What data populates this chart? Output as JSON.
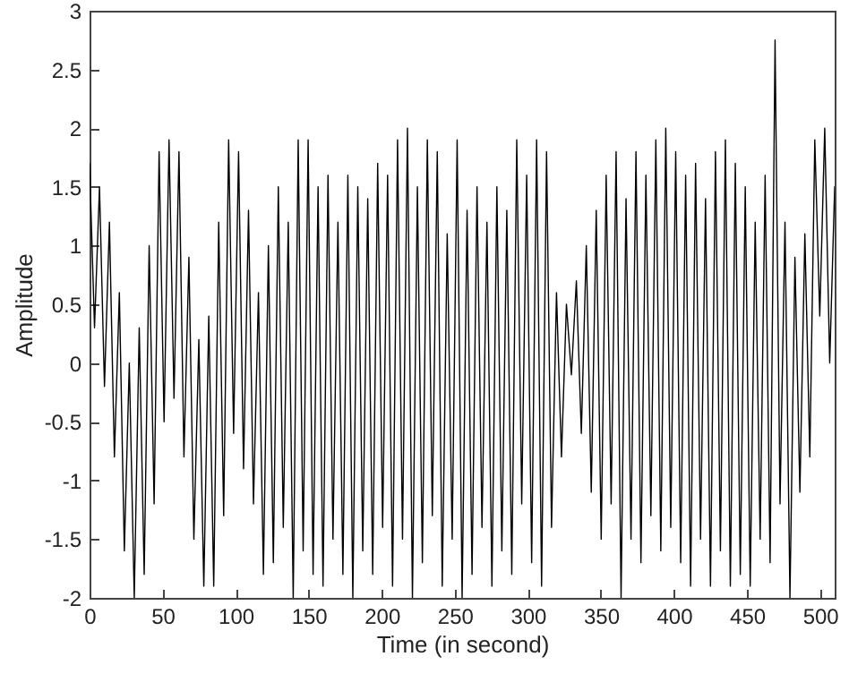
{
  "chart_data": {
    "type": "line",
    "xlabel": "Time (in second)",
    "ylabel": "Amplitude",
    "x": [
      0,
      3.4,
      6.8,
      10.2,
      13.6,
      17,
      20.4,
      23.8,
      27.2,
      30.6,
      34,
      37.4,
      40.8,
      44.2,
      47.6,
      51,
      54.4,
      57.8,
      61.2,
      64.6,
      68,
      71.4,
      74.8,
      78.2,
      81.6,
      85,
      88.4,
      91.8,
      95.2,
      98.6,
      102,
      105.4,
      108.8,
      112.2,
      115.6,
      119,
      122.4,
      125.8,
      129.2,
      132.6,
      136,
      139.4,
      142.8,
      146.2,
      149.6,
      153,
      156.4,
      159.8,
      163.2,
      166.6,
      170,
      173.4,
      176.8,
      180.2,
      183.6,
      187,
      190.4,
      193.8,
      197.2,
      200.6,
      204,
      207.4,
      210.8,
      214.2,
      217.6,
      221,
      224.4,
      227.8,
      231.2,
      234.6,
      238,
      241.4,
      244.8,
      248.2,
      251.6,
      255,
      258.4,
      261.8,
      265.2,
      268.6,
      272,
      275.4,
      278.8,
      282.2,
      285.6,
      289,
      292.4,
      295.8,
      299.2,
      302.6,
      306,
      309.4,
      312.8,
      316.2,
      319.6,
      323,
      326.4,
      329.8,
      333.2,
      336.6,
      340,
      343.4,
      346.8,
      350.2,
      353.6,
      357,
      360.4,
      363.8,
      367.2,
      370.6,
      374,
      377.4,
      380.8,
      384.2,
      387.6,
      391,
      394.4,
      397.8,
      401.2,
      404.6,
      408,
      411.4,
      414.8,
      418.2,
      421.6,
      425,
      428.4,
      431.8,
      435.2,
      438.6,
      442,
      445.4,
      448.8,
      452.2,
      455.6,
      459,
      462.4,
      465.8,
      469.2,
      472.6,
      476,
      479.4,
      482.8,
      486.2,
      489.6,
      493,
      496.4,
      499.8,
      503.2,
      506.6,
      510
    ],
    "series": [
      {
        "color": "#000000",
        "values": [
          1.7,
          0.3,
          1.5,
          -0.2,
          1.2,
          -0.8,
          0.6,
          -1.6,
          0.0,
          -2.0,
          0.3,
          -1.8,
          1.0,
          -1.2,
          1.8,
          -0.5,
          1.9,
          -0.3,
          1.8,
          -0.8,
          0.9,
          -1.5,
          0.2,
          -1.9,
          0.4,
          -1.9,
          1.2,
          -1.3,
          1.9,
          -0.6,
          1.8,
          -0.9,
          1.3,
          -1.2,
          0.6,
          -1.8,
          1.0,
          -1.7,
          1.5,
          -1.4,
          1.2,
          -2.0,
          1.9,
          -1.6,
          1.9,
          -1.8,
          1.5,
          -1.9,
          1.6,
          -1.5,
          1.2,
          -1.8,
          1.6,
          -2.0,
          1.5,
          -1.6,
          1.4,
          -1.8,
          1.7,
          -1.4,
          1.6,
          -1.9,
          1.9,
          -1.5,
          2.0,
          -2.0,
          1.5,
          -1.7,
          1.9,
          -1.3,
          1.8,
          -1.9,
          1.1,
          -1.5,
          1.9,
          -2.0,
          1.3,
          -1.8,
          1.5,
          -1.4,
          1.2,
          -1.9,
          1.5,
          -1.6,
          1.3,
          -1.8,
          1.9,
          -1.2,
          1.6,
          -1.7,
          1.9,
          -1.9,
          1.8,
          -1.4,
          0.6,
          -0.8,
          0.5,
          -0.1,
          0.7,
          -0.6,
          1.0,
          -1.1,
          1.3,
          -1.5,
          1.6,
          -1.2,
          1.8,
          -2.0,
          1.4,
          -1.5,
          1.8,
          -1.7,
          1.6,
          -1.3,
          1.9,
          -1.6,
          2.0,
          -1.4,
          1.8,
          -1.7,
          1.6,
          -1.9,
          1.7,
          -1.5,
          1.4,
          -1.9,
          1.8,
          -1.6,
          1.9,
          -1.9,
          1.7,
          -1.8,
          1.5,
          -1.9,
          1.2,
          -1.5,
          1.6,
          -1.7,
          2.75,
          -1.2,
          1.2,
          -2.0,
          0.9,
          -1.1,
          1.1,
          -0.8,
          1.9,
          0.4,
          2.0,
          0.0,
          1.5
        ]
      }
    ],
    "xlim": [
      0,
      510
    ],
    "ylim": [
      -2,
      3
    ],
    "xticks": [
      0,
      50,
      100,
      150,
      200,
      250,
      300,
      350,
      400,
      450,
      500
    ],
    "yticks": [
      -2,
      -1.5,
      -1,
      -0.5,
      0,
      0.5,
      1,
      1.5,
      2,
      2.5,
      3
    ],
    "grid": false
  }
}
